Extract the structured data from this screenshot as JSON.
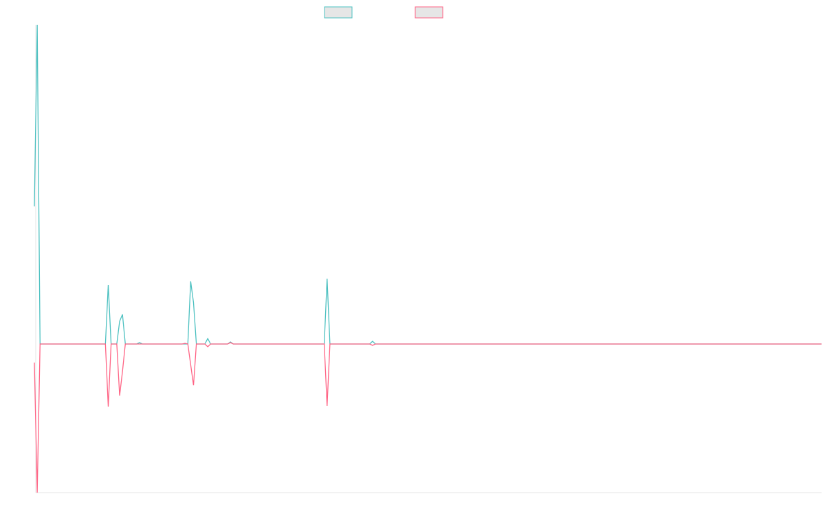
{
  "chart_data": {
    "type": "line",
    "x": [
      0,
      1,
      2,
      25,
      26,
      27,
      29,
      30,
      31,
      32,
      36,
      37,
      38,
      52,
      53,
      54,
      55,
      56,
      57,
      60,
      61,
      62,
      68,
      69,
      70,
      102,
      103,
      104,
      118,
      119,
      120,
      277
    ],
    "series": [
      {
        "color": "#4bc0c0",
        "values": [
          200,
          464,
          0,
          0,
          86,
          0,
          0,
          33,
          43,
          0,
          0,
          2,
          0,
          0,
          0,
          0,
          91,
          60,
          0,
          0,
          8,
          0,
          0,
          3,
          0,
          0,
          95,
          0,
          0,
          4,
          0,
          0
        ]
      },
      {
        "color": "#ff6384",
        "values": [
          -27,
          -216,
          0,
          0,
          -91,
          0,
          0,
          -75,
          -40,
          0,
          0,
          0,
          0,
          0,
          1,
          0,
          -30,
          -60,
          0,
          0,
          -4,
          0,
          0,
          2,
          0,
          0,
          -90,
          0,
          0,
          -2,
          0,
          0
        ]
      }
    ],
    "xlim": [
      0,
      277
    ],
    "ylim": [
      -216,
      464
    ],
    "legend": "top"
  }
}
